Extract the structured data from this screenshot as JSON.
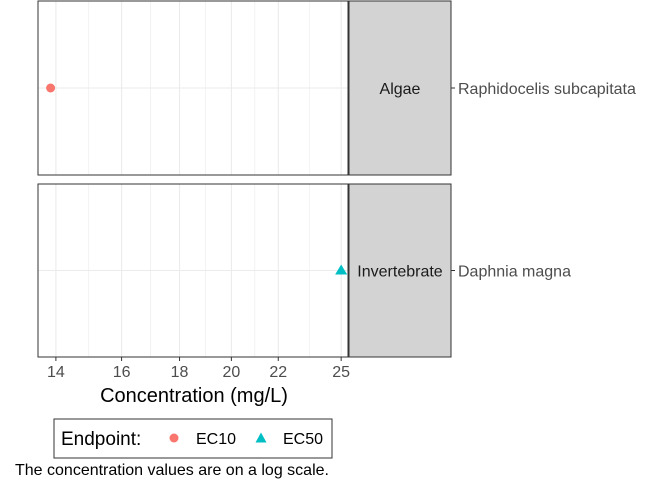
{
  "chart_data": {
    "type": "scatter",
    "x_scale": "log",
    "xlabel": "Concentration (mg/L)",
    "ylabel": "",
    "xlim": [
      13.5,
      25.35
    ],
    "x_ticks": [
      14,
      16,
      18,
      20,
      22,
      25
    ],
    "grid": true,
    "legend": {
      "title": "Endpoint:",
      "position": "bottom",
      "entries": [
        {
          "label": "EC10",
          "shape": "circle",
          "color": "#F8766D"
        },
        {
          "label": "EC50",
          "shape": "triangle",
          "color": "#00BFC4"
        }
      ]
    },
    "facets": [
      {
        "group": "Algae",
        "species": "Raphidocelis subcapitata"
      },
      {
        "group": "Invertebrate",
        "species": "Daphnia magna"
      }
    ],
    "points": [
      {
        "facet": "Algae",
        "species": "Raphidocelis subcapitata",
        "x": 13.85,
        "endpoint": "EC10"
      },
      {
        "facet": "Invertebrate",
        "species": "Daphnia magna",
        "x": 25.0,
        "endpoint": "EC50"
      }
    ],
    "caption": "The concentration values are on a log scale."
  },
  "colors": {
    "strip_fill": "#d3d3d3",
    "grid": "#ebebeb",
    "panel_border": "#333333",
    "text": "#1a1a1a"
  }
}
